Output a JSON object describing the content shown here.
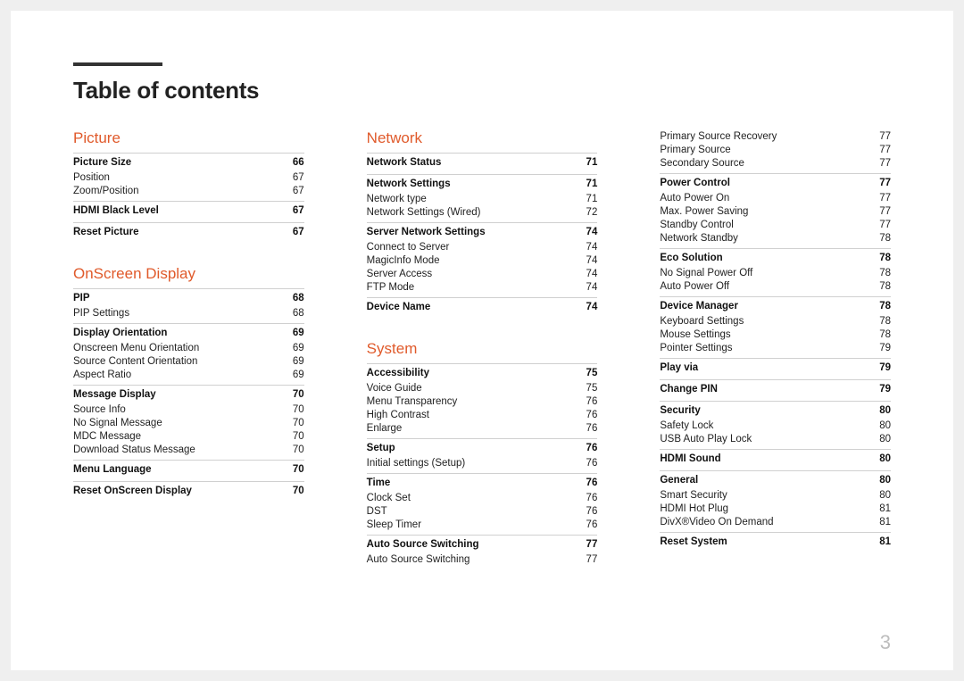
{
  "page_number": "3",
  "title": "Table of contents",
  "columns": [
    {
      "sections": [
        {
          "heading": "Picture",
          "groups": [
            {
              "title": "Picture Size",
              "page": "66",
              "items": [
                {
                  "label": "Position",
                  "page": "67"
                },
                {
                  "label": "Zoom/Position",
                  "page": "67"
                }
              ]
            },
            {
              "title": "HDMI Black Level",
              "page": "67",
              "items": []
            },
            {
              "title": "Reset Picture",
              "page": "67",
              "items": []
            }
          ]
        },
        {
          "heading": "OnScreen Display",
          "groups": [
            {
              "title": "PIP",
              "page": "68",
              "items": [
                {
                  "label": "PIP Settings",
                  "page": "68"
                }
              ]
            },
            {
              "title": "Display Orientation",
              "page": "69",
              "items": [
                {
                  "label": "Onscreen Menu Orientation",
                  "page": "69"
                },
                {
                  "label": "Source Content Orientation",
                  "page": "69"
                },
                {
                  "label": "Aspect Ratio",
                  "page": "69"
                }
              ]
            },
            {
              "title": "Message Display",
              "page": "70",
              "items": [
                {
                  "label": "Source Info",
                  "page": "70"
                },
                {
                  "label": "No Signal Message",
                  "page": "70"
                },
                {
                  "label": "MDC Message",
                  "page": "70"
                },
                {
                  "label": "Download Status Message",
                  "page": "70"
                }
              ]
            },
            {
              "title": "Menu Language",
              "page": "70",
              "items": []
            },
            {
              "title": "Reset OnScreen Display",
              "page": "70",
              "items": []
            }
          ]
        }
      ]
    },
    {
      "sections": [
        {
          "heading": "Network",
          "groups": [
            {
              "title": "Network Status",
              "page": "71",
              "items": []
            },
            {
              "title": "Network Settings",
              "page": "71",
              "items": [
                {
                  "label": "Network type",
                  "page": "71"
                },
                {
                  "label": "Network Settings (Wired)",
                  "page": "72"
                }
              ]
            },
            {
              "title": "Server Network Settings",
              "page": "74",
              "items": [
                {
                  "label": "Connect to Server",
                  "page": "74"
                },
                {
                  "label": "MagicInfo Mode",
                  "page": "74"
                },
                {
                  "label": "Server Access",
                  "page": "74"
                },
                {
                  "label": "FTP Mode",
                  "page": "74"
                }
              ]
            },
            {
              "title": "Device Name",
              "page": "74",
              "items": []
            }
          ]
        },
        {
          "heading": "System",
          "groups": [
            {
              "title": "Accessibility",
              "page": "75",
              "items": [
                {
                  "label": "Voice Guide",
                  "page": "75"
                },
                {
                  "label": "Menu Transparency",
                  "page": "76"
                },
                {
                  "label": "High Contrast",
                  "page": "76"
                },
                {
                  "label": "Enlarge",
                  "page": "76"
                }
              ]
            },
            {
              "title": "Setup",
              "page": "76",
              "items": [
                {
                  "label": "Initial settings (Setup)",
                  "page": "76"
                }
              ]
            },
            {
              "title": "Time",
              "page": "76",
              "items": [
                {
                  "label": "Clock Set",
                  "page": "76"
                },
                {
                  "label": "DST",
                  "page": "76"
                },
                {
                  "label": "Sleep Timer",
                  "page": "76"
                }
              ]
            },
            {
              "title": "Auto Source Switching",
              "page": "77",
              "items": [
                {
                  "label": "Auto Source Switching",
                  "page": "77"
                }
              ]
            }
          ]
        }
      ]
    },
    {
      "sections": [
        {
          "heading": null,
          "lead_items": [
            {
              "label": "Primary Source Recovery",
              "page": "77"
            },
            {
              "label": "Primary Source",
              "page": "77"
            },
            {
              "label": "Secondary Source",
              "page": "77"
            }
          ],
          "groups": [
            {
              "title": "Power Control",
              "page": "77",
              "items": [
                {
                  "label": "Auto Power On",
                  "page": "77"
                },
                {
                  "label": "Max. Power Saving",
                  "page": "77"
                },
                {
                  "label": "Standby Control",
                  "page": "77"
                },
                {
                  "label": "Network Standby",
                  "page": "78"
                }
              ]
            },
            {
              "title": "Eco Solution",
              "page": "78",
              "items": [
                {
                  "label": "No Signal Power Off",
                  "page": "78"
                },
                {
                  "label": "Auto Power Off",
                  "page": "78"
                }
              ]
            },
            {
              "title": "Device Manager",
              "page": "78",
              "items": [
                {
                  "label": "Keyboard Settings",
                  "page": "78"
                },
                {
                  "label": "Mouse Settings",
                  "page": "78"
                },
                {
                  "label": "Pointer Settings",
                  "page": "79"
                }
              ]
            },
            {
              "title": "Play via",
              "page": "79",
              "items": []
            },
            {
              "title": "Change PIN",
              "page": "79",
              "items": []
            },
            {
              "title": "Security",
              "page": "80",
              "items": [
                {
                  "label": "Safety Lock",
                  "page": "80"
                },
                {
                  "label": "USB Auto Play Lock",
                  "page": "80"
                }
              ]
            },
            {
              "title": "HDMI Sound",
              "page": "80",
              "items": []
            },
            {
              "title": "General",
              "page": "80",
              "items": [
                {
                  "label": "Smart Security",
                  "page": "80"
                },
                {
                  "label": "HDMI Hot Plug",
                  "page": "81"
                },
                {
                  "label": "DivX®Video On Demand",
                  "page": "81"
                }
              ]
            },
            {
              "title": "Reset System",
              "page": "81",
              "items": []
            }
          ]
        }
      ]
    }
  ]
}
